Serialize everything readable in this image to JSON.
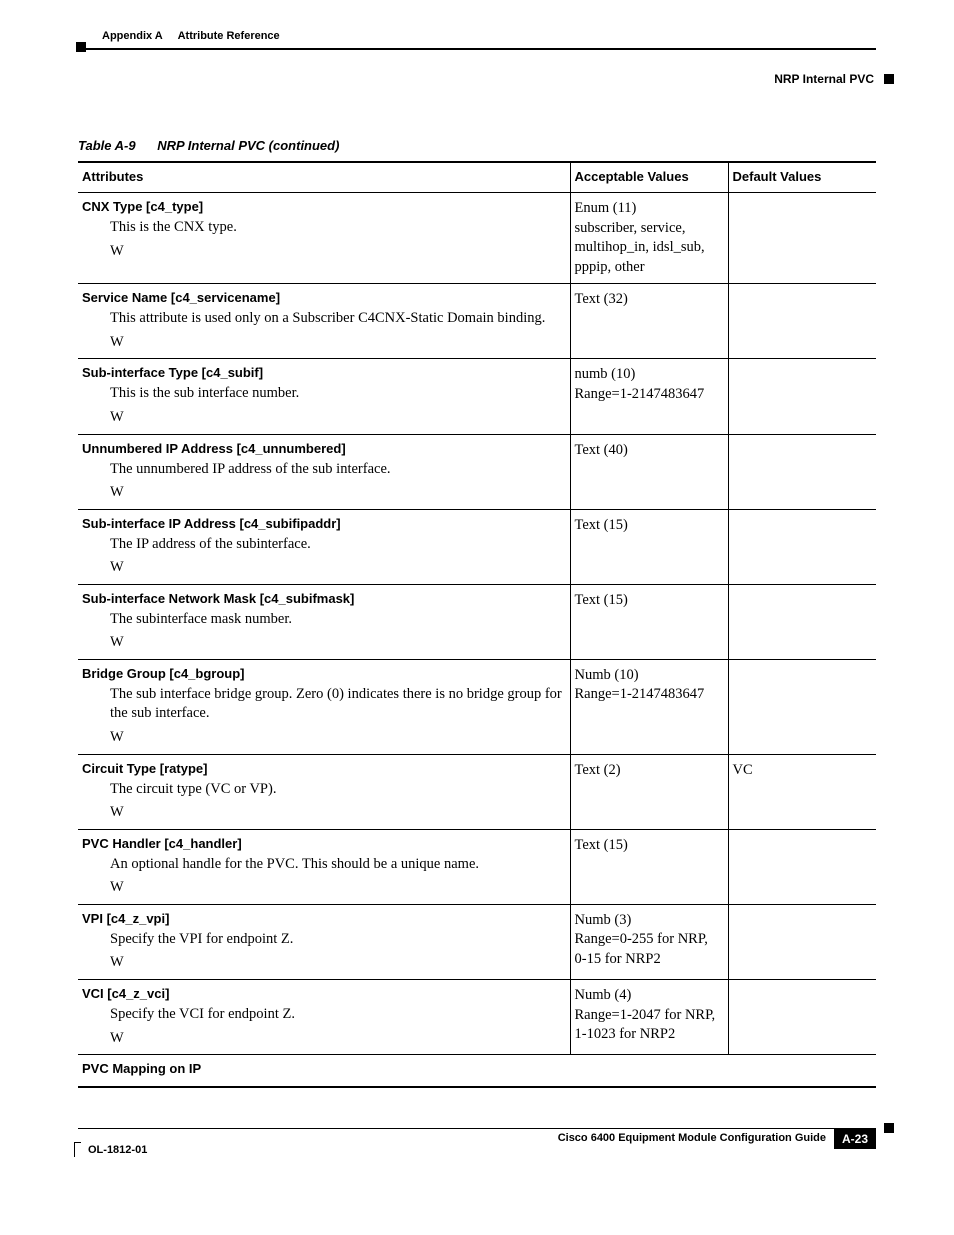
{
  "header": {
    "appendix": "Appendix A",
    "title": "Attribute Reference",
    "section": "NRP Internal PVC"
  },
  "table": {
    "caption_num": "Table A-9",
    "caption_text": "NRP Internal PVC  (continued)",
    "columns": [
      "Attributes",
      "Acceptable Values",
      "Default Values"
    ],
    "rows": [
      {
        "attr_title": "CNX Type [c4_type]",
        "attr_desc": "This is the CNX type.",
        "attr_flag": "W",
        "values": "Enum (11)\nsubscriber, service, multihop_in, idsl_sub, pppip, other",
        "default": ""
      },
      {
        "attr_title": "Service Name [c4_servicename]",
        "attr_desc": "This attribute is used only on a Subscriber C4CNX-Static Domain binding.",
        "attr_flag": "W",
        "values": "Text (32)",
        "default": ""
      },
      {
        "attr_title": "Sub-interface Type [c4_subif]",
        "attr_desc": "This is the sub interface number.",
        "attr_flag": "W",
        "values": "numb (10)\nRange=1-2147483647",
        "default": ""
      },
      {
        "attr_title": "Unnumbered IP Address [c4_unnumbered]",
        "attr_desc": "The unnumbered IP address of the sub interface.",
        "attr_flag": "W",
        "values": "Text (40)",
        "default": ""
      },
      {
        "attr_title": "Sub-interface IP Address [c4_subifipaddr]",
        "attr_desc": "The IP address of the subinterface.",
        "attr_flag": "W",
        "values": "Text (15)",
        "default": ""
      },
      {
        "attr_title": "Sub-interface Network Mask [c4_subifmask]",
        "attr_desc": "The subinterface mask number.",
        "attr_flag": "W",
        "values": "Text (15)",
        "default": ""
      },
      {
        "attr_title": "Bridge Group [c4_bgroup]",
        "attr_desc": "The sub interface bridge group. Zero (0) indicates there is no bridge group for the sub interface.",
        "attr_flag": "W",
        "values": "Numb (10)\nRange=1-2147483647",
        "default": ""
      },
      {
        "attr_title": "Circuit Type [ratype]",
        "attr_desc": "The circuit type (VC or VP).",
        "attr_flag": "W",
        "values": "Text (2)",
        "default": "VC"
      },
      {
        "attr_title": "PVC Handler [c4_handler]",
        "attr_desc": "An optional handle for the PVC. This should be a unique name.",
        "attr_flag": "W",
        "values": "Text (15)",
        "default": ""
      },
      {
        "attr_title": "VPI [c4_z_vpi]",
        "attr_desc": "Specify the VPI for endpoint Z.",
        "attr_flag": "W",
        "values": "Numb (3)\nRange=0-255 for NRP, 0-15 for NRP2",
        "default": ""
      },
      {
        "attr_title": "VCI [c4_z_vci]",
        "attr_desc": "Specify the VCI for endpoint Z.",
        "attr_flag": "W",
        "values": "Numb (4)\nRange=1-2047 for NRP, 1-1023 for NRP2",
        "default": ""
      },
      {
        "attr_title": "PVC Mapping on IP",
        "attr_desc": "",
        "attr_flag": "",
        "values": "",
        "default": "",
        "span": true
      }
    ]
  },
  "footer": {
    "doc_title": "Cisco 6400 Equipment Module Configuration Guide",
    "doc_id": "OL-1812-01",
    "page": "A-23"
  }
}
